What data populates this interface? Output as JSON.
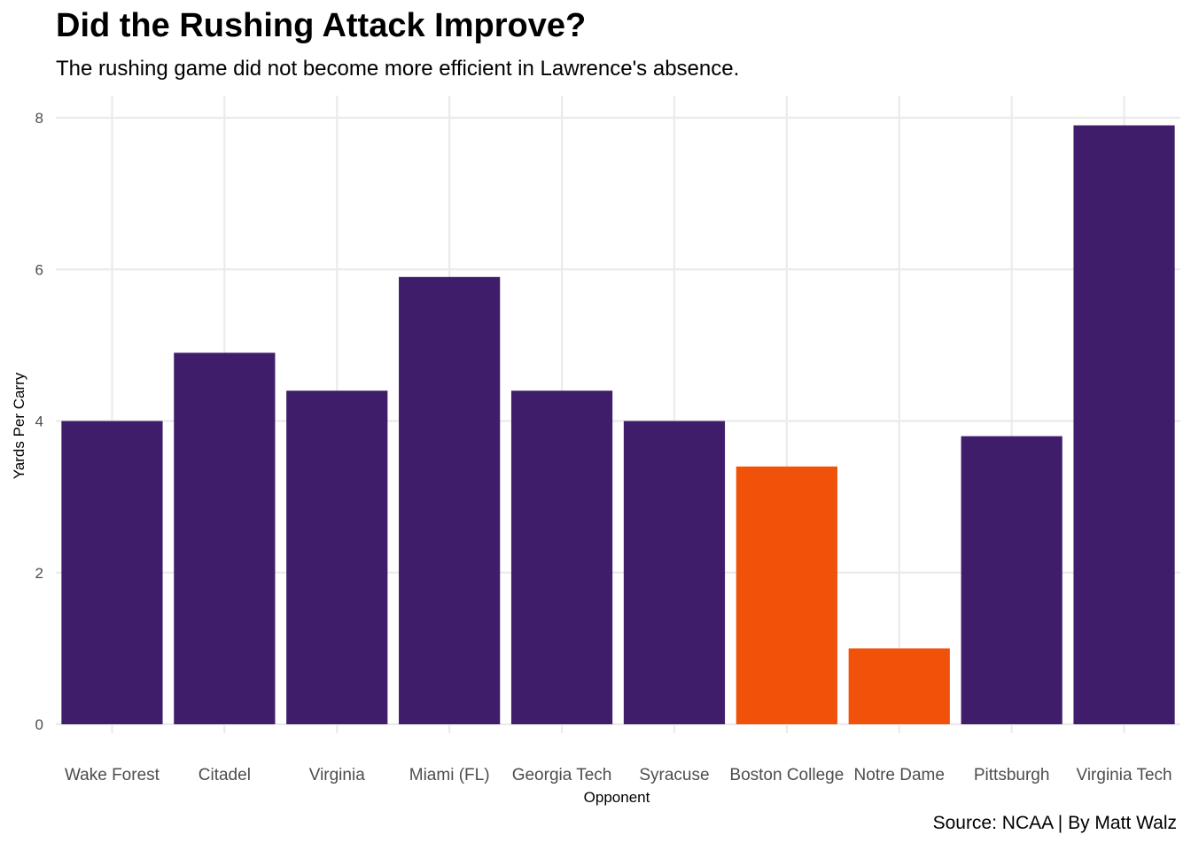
{
  "chart_data": {
    "type": "bar",
    "title": "Did the Rushing Attack Improve?",
    "subtitle": "The rushing game did not become more efficient in Lawrence's absence.",
    "caption": "Source: NCAA | By Matt Walz",
    "xlabel": "Opponent",
    "ylabel": "Yards Per Carry",
    "categories": [
      "Wake Forest",
      "Citadel",
      "Virginia",
      "Miami (FL)",
      "Georgia Tech",
      "Syracuse",
      "Boston College",
      "Notre Dame",
      "Pittsburgh",
      "Virginia Tech"
    ],
    "values": [
      4.0,
      4.9,
      4.4,
      5.9,
      4.4,
      4.0,
      3.4,
      1.0,
      3.8,
      7.9
    ],
    "highlighted": [
      false,
      false,
      false,
      false,
      false,
      false,
      true,
      true,
      false,
      false
    ],
    "colors": {
      "default": "#3f1d6a",
      "highlight": "#f0520a",
      "grid": "#ebebeb"
    },
    "ylim": [
      0,
      8
    ],
    "yticks": [
      0,
      2,
      4,
      6,
      8
    ],
    "grid": true,
    "legend": "none"
  }
}
